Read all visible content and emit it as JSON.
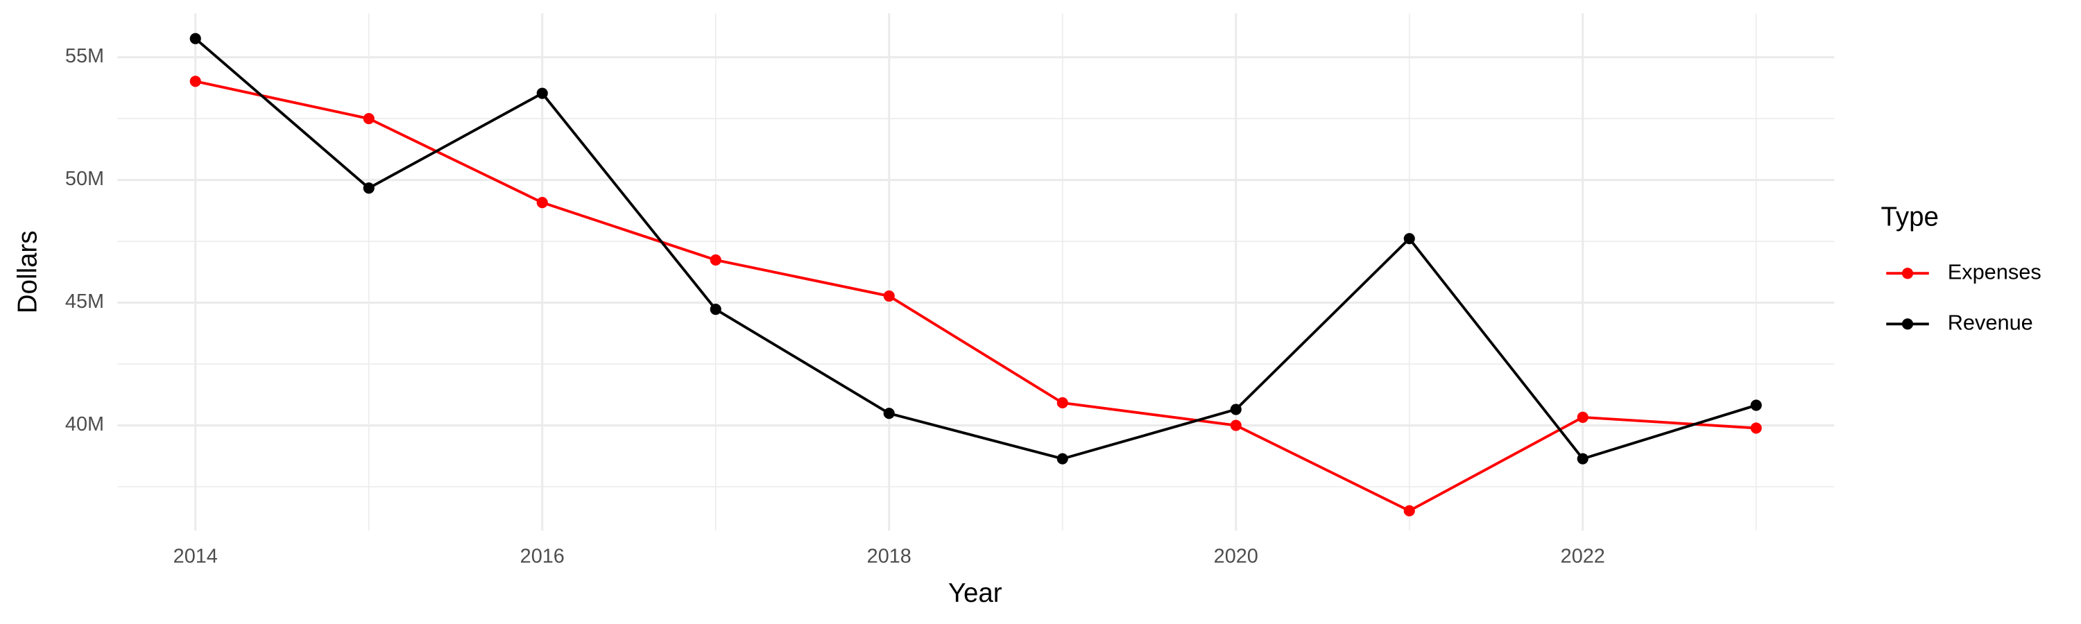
{
  "chart_data": {
    "type": "line",
    "x_label": "Year",
    "y_label": "Dollars",
    "legend_title": "Type",
    "legend_position": "right",
    "grid": true,
    "x": [
      2014,
      2015,
      2016,
      2017,
      2018,
      2019,
      2020,
      2021,
      2022,
      2023
    ],
    "xlim": [
      2013.55,
      2023.45
    ],
    "xticks": [
      2014,
      2016,
      2018,
      2020,
      2022
    ],
    "ylim": [
      35710000,
      56790000
    ],
    "yticks": [
      {
        "value": 40000000,
        "label": "40M"
      },
      {
        "value": 45000000,
        "label": "45M"
      },
      {
        "value": 50000000,
        "label": "50M"
      },
      {
        "value": 55000000,
        "label": "55M"
      }
    ],
    "series": [
      {
        "name": "Expenses",
        "color": "#ff0000",
        "values": [
          54020000,
          52500000,
          49080000,
          46740000,
          45270000,
          40920000,
          40000000,
          36520000,
          40330000,
          39890000
        ]
      },
      {
        "name": "Revenue",
        "color": "#000000",
        "values": [
          55760000,
          49670000,
          53530000,
          44730000,
          40490000,
          38640000,
          40650000,
          47610000,
          38640000,
          40820000
        ]
      }
    ]
  }
}
